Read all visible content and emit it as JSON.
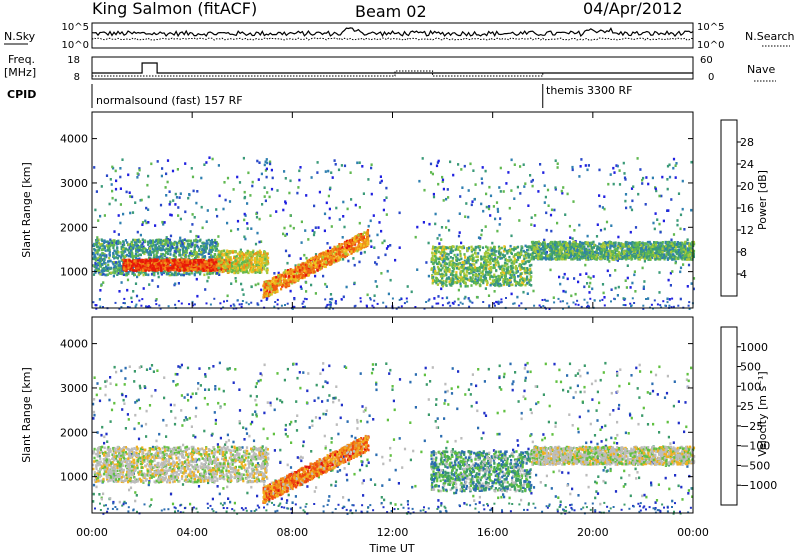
{
  "header": {
    "station": "King Salmon (fitACF)",
    "beam": "Beam 02",
    "date": "04/Apr/2012"
  },
  "side_labels": {
    "nsky": "N.Sky",
    "nsearch": "N.Search",
    "freq_line1": "Freq.",
    "freq_line2": "[MHz]",
    "nave": "Nave",
    "cpid": "CPID"
  },
  "noise_ticks_left": [
    "10^5",
    "10^0"
  ],
  "noise_ticks_right": [
    "10^5",
    "10^0"
  ],
  "freq_ticks": [
    "18",
    "8"
  ],
  "nave_ticks": [
    "60",
    "0"
  ],
  "cpid_segments": [
    {
      "label": "normalsound (fast) 157 RF",
      "start_hour": 0
    },
    {
      "label": "themis 3300 RF",
      "start_hour": 18
    }
  ],
  "colors": {
    "power_scale": [
      "#2020e0",
      "#2848c8",
      "#2f7fb0",
      "#3a9a78",
      "#60b850",
      "#a8c838",
      "#f0c020",
      "#f09018",
      "#f05a10",
      "#e81808"
    ],
    "velocity_scale": [
      "#2030c8",
      "#2a6cb0",
      "#3a9a6a",
      "#60c040",
      "#bcbcbc",
      "#bcbcbc",
      "#f0b020",
      "#f08a18",
      "#f04a10",
      "#e01010"
    ]
  },
  "chart_data": [
    {
      "type": "heatmap",
      "panel": "power",
      "xlabel": "",
      "ylabel": "Slant Range [km]",
      "xlim": [
        0,
        24
      ],
      "ylim": [
        180,
        4600
      ],
      "yticks": [
        "4000",
        "3000",
        "2000",
        "1000"
      ],
      "colorbar_label": "Power [dB]",
      "colorbar_ticks": [
        "28",
        "24",
        "20",
        "16",
        "12",
        "8",
        "4"
      ],
      "bands": [
        {
          "t0": 0.0,
          "t1": 5.0,
          "r0": 950,
          "r1": 1750,
          "level": 0.35
        },
        {
          "t0": 1.2,
          "t1": 5.5,
          "r0": 1050,
          "r1": 1300,
          "level": 0.9
        },
        {
          "t0": 5.0,
          "t1": 7.0,
          "r0": 1000,
          "r1": 1500,
          "level": 0.6
        },
        {
          "t0": 6.8,
          "t1": 11.0,
          "r0": 600,
          "r1": 1800,
          "level": 0.75
        },
        {
          "t0": 13.5,
          "t1": 17.5,
          "r0": 700,
          "r1": 1600,
          "level": 0.45
        },
        {
          "t0": 17.5,
          "t1": 24.0,
          "r0": 1300,
          "r1": 1700,
          "level": 0.4
        }
      ]
    },
    {
      "type": "heatmap",
      "panel": "velocity",
      "xlabel": "Time UT",
      "ylabel": "Slant Range [km]",
      "xlim": [
        0,
        24
      ],
      "ylim": [
        180,
        4600
      ],
      "xticks": [
        "00:00",
        "04:00",
        "08:00",
        "12:00",
        "16:00",
        "20:00",
        "00:00"
      ],
      "yticks": [
        "4000",
        "3000",
        "2000",
        "1000"
      ],
      "colorbar_label": "Velocity [m s⁻¹]",
      "colorbar_ticks": [
        "1000",
        "500",
        "100",
        "25",
        "−25",
        "−100",
        "−500",
        "−1000"
      ],
      "bands": [
        {
          "t0": 0.0,
          "t1": 7.0,
          "r0": 900,
          "r1": 1700,
          "level": 0.5
        },
        {
          "t0": 6.8,
          "t1": 11.0,
          "r0": 600,
          "r1": 1800,
          "level": 0.75
        },
        {
          "t0": 13.5,
          "t1": 17.5,
          "r0": 700,
          "r1": 1600,
          "level": 0.3
        },
        {
          "t0": 17.5,
          "t1": 24.0,
          "r0": 1300,
          "r1": 1700,
          "level": 0.5
        }
      ]
    }
  ]
}
